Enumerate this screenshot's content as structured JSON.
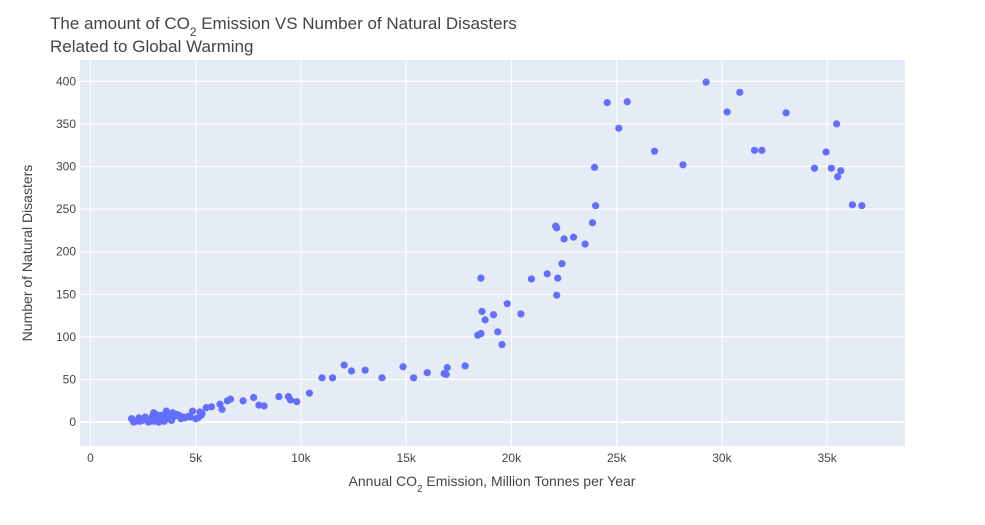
{
  "chart_data": {
    "type": "scatter",
    "title_lines": [
      {
        "parts": [
          {
            "t": "The amount of CO"
          },
          {
            "t": "2",
            "sub": true
          },
          {
            "t": " Emission VS Number of Natural Disasters"
          }
        ]
      },
      {
        "parts": [
          {
            "t": "Related to Global Warming"
          }
        ]
      }
    ],
    "xlabel_parts": [
      {
        "t": "Annual CO"
      },
      {
        "t": "2",
        "sub": true
      },
      {
        "t": " Emission, Million Tonnes per Year"
      }
    ],
    "ylabel": "Number of Natural Disasters",
    "xlim": [
      -500,
      38700
    ],
    "ylim": [
      -28,
      425
    ],
    "xticks": [
      0,
      5000,
      10000,
      15000,
      20000,
      25000,
      30000,
      35000
    ],
    "xtick_labels": [
      "0",
      "5k",
      "10k",
      "15k",
      "20k",
      "25k",
      "30k",
      "35k"
    ],
    "yticks": [
      0,
      50,
      100,
      150,
      200,
      250,
      300,
      350,
      400
    ],
    "ytick_labels": [
      "0",
      "50",
      "100",
      "150",
      "200",
      "250",
      "300",
      "350",
      "400"
    ],
    "grid": true,
    "colors": {
      "plot_bg": "#e5ecf6",
      "grid": "#ffffff",
      "marker": "#636efa",
      "text": "#444444"
    },
    "points": [
      [
        1950,
        4
      ],
      [
        2050,
        0
      ],
      [
        2150,
        1
      ],
      [
        2300,
        5
      ],
      [
        2350,
        1
      ],
      [
        2450,
        2
      ],
      [
        2600,
        6
      ],
      [
        2750,
        0
      ],
      [
        2850,
        1
      ],
      [
        2900,
        4
      ],
      [
        2950,
        7
      ],
      [
        3000,
        11
      ],
      [
        3050,
        1
      ],
      [
        3100,
        9
      ],
      [
        3150,
        3
      ],
      [
        3200,
        5
      ],
      [
        3250,
        0
      ],
      [
        3300,
        2
      ],
      [
        3350,
        8
      ],
      [
        3400,
        3
      ],
      [
        3450,
        6
      ],
      [
        3500,
        1
      ],
      [
        3550,
        7
      ],
      [
        3600,
        13
      ],
      [
        3650,
        4
      ],
      [
        3700,
        9
      ],
      [
        3800,
        5
      ],
      [
        3850,
        2
      ],
      [
        3900,
        11
      ],
      [
        4000,
        7
      ],
      [
        4100,
        9
      ],
      [
        4200,
        8
      ],
      [
        4300,
        4
      ],
      [
        4400,
        6
      ],
      [
        4500,
        5
      ],
      [
        4650,
        7
      ],
      [
        4750,
        6
      ],
      [
        4850,
        13
      ],
      [
        5000,
        4
      ],
      [
        5100,
        5
      ],
      [
        5200,
        12
      ],
      [
        5250,
        8
      ],
      [
        5300,
        10
      ],
      [
        5500,
        17
      ],
      [
        5750,
        18
      ],
      [
        6150,
        21
      ],
      [
        6250,
        15
      ],
      [
        6500,
        25
      ],
      [
        6650,
        27
      ],
      [
        7250,
        25
      ],
      [
        7750,
        29
      ],
      [
        8000,
        20
      ],
      [
        8250,
        19
      ],
      [
        8950,
        30
      ],
      [
        9400,
        30
      ],
      [
        9500,
        26
      ],
      [
        9800,
        24
      ],
      [
        10400,
        34
      ],
      [
        11000,
        52
      ],
      [
        11500,
        52
      ],
      [
        12050,
        67
      ],
      [
        12400,
        60
      ],
      [
        13050,
        61
      ],
      [
        13850,
        52
      ],
      [
        14850,
        65
      ],
      [
        15350,
        52
      ],
      [
        16000,
        58
      ],
      [
        16800,
        57
      ],
      [
        16900,
        56
      ],
      [
        16950,
        64
      ],
      [
        17800,
        66
      ],
      [
        18400,
        102
      ],
      [
        18550,
        104
      ],
      [
        18550,
        169
      ],
      [
        18600,
        130
      ],
      [
        18750,
        120
      ],
      [
        19150,
        126
      ],
      [
        19350,
        106
      ],
      [
        19550,
        91
      ],
      [
        19800,
        139
      ],
      [
        20450,
        127
      ],
      [
        20950,
        168
      ],
      [
        21700,
        174
      ],
      [
        22100,
        230
      ],
      [
        22150,
        149
      ],
      [
        22150,
        228
      ],
      [
        22200,
        169
      ],
      [
        22400,
        186
      ],
      [
        22500,
        215
      ],
      [
        22950,
        217
      ],
      [
        23500,
        209
      ],
      [
        23850,
        234
      ],
      [
        23950,
        299
      ],
      [
        24000,
        254
      ],
      [
        24550,
        375
      ],
      [
        25100,
        345
      ],
      [
        25500,
        376
      ],
      [
        26800,
        318
      ],
      [
        28150,
        302
      ],
      [
        29250,
        399
      ],
      [
        30250,
        364
      ],
      [
        30850,
        387
      ],
      [
        31550,
        319
      ],
      [
        31900,
        319
      ],
      [
        33050,
        363
      ],
      [
        34400,
        298
      ],
      [
        34950,
        317
      ],
      [
        35200,
        298
      ],
      [
        35450,
        350
      ],
      [
        35500,
        288
      ],
      [
        35650,
        295
      ],
      [
        36200,
        255
      ],
      [
        36650,
        254
      ]
    ]
  }
}
